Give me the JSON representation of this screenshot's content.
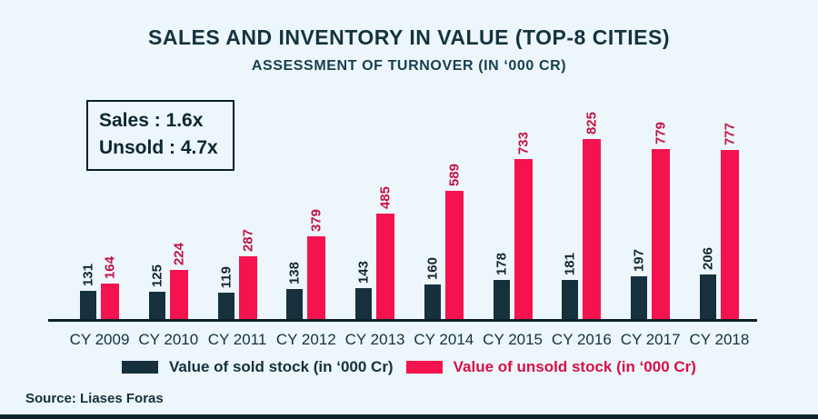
{
  "header": {
    "title": "SALES AND INVENTORY IN VALUE (TOP-8 CITIES)",
    "subtitle": "ASSESSMENT OF TURNOVER (IN ‘000 CR)"
  },
  "ratio_box": {
    "sales_line": "Sales : 1.6x",
    "unsold_line": "Unsold : 4.7x"
  },
  "chart_data": {
    "type": "bar",
    "categories": [
      "CY 2009",
      "CY 2010",
      "CY 2011",
      "CY 2012",
      "CY 2013",
      "CY 2014",
      "CY 2015",
      "CY 2016",
      "CY 2017",
      "CY 2018"
    ],
    "series": [
      {
        "name": "Value of sold stock (in ‘000 Cr)",
        "values": [
          131,
          125,
          119,
          138,
          143,
          160,
          178,
          181,
          197,
          206
        ],
        "color": "#16313d",
        "label_color": "#122630"
      },
      {
        "name": "Value of unsold stock (in ‘000 Cr)",
        "values": [
          164,
          224,
          287,
          379,
          485,
          589,
          733,
          825,
          779,
          777
        ],
        "color": "#f4134e",
        "label_color": "#c31247"
      }
    ],
    "title": "SALES AND INVENTORY IN VALUE (TOP-8 CITIES)",
    "subtitle": "ASSESSMENT OF TURNOVER (IN ‘000 CR)",
    "xlabel": "",
    "ylabel": "",
    "ylim": [
      0,
      850
    ],
    "grid": false,
    "legend_position": "bottom",
    "value_labels": "rotated-vertical"
  },
  "source": "Source: Liases Foras",
  "colors": {
    "background": "#edf6fa",
    "sold_bar": "#16313d",
    "unsold_bar": "#f4134e",
    "sold_value_label": "#122630",
    "unsold_value_label": "#c31247",
    "axis": "#0d2029",
    "title_text": "#14333f"
  }
}
